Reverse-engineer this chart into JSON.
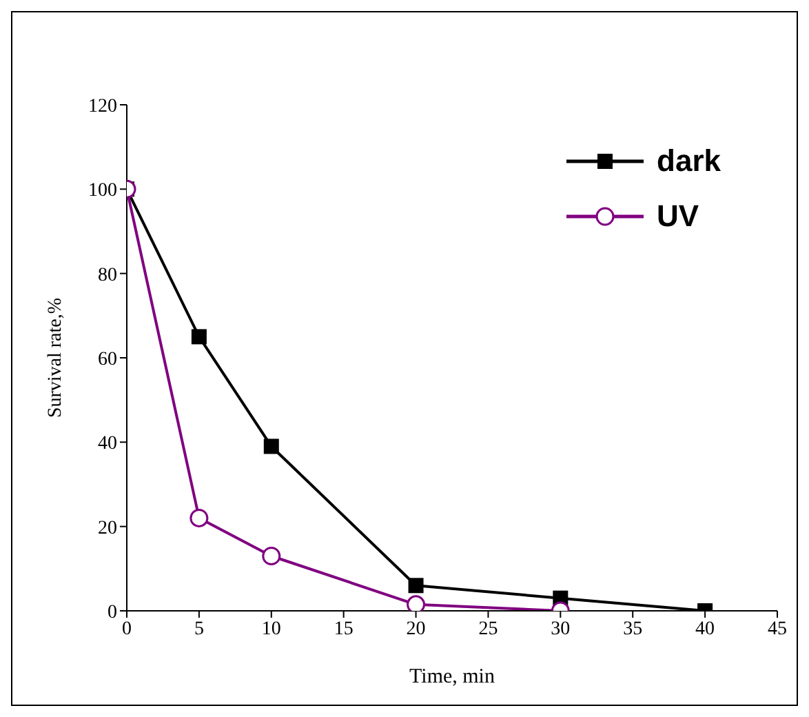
{
  "chart_data": {
    "type": "line",
    "xlabel": "Time, min",
    "ylabel": "Survival rate,%",
    "xlim": [
      0,
      45
    ],
    "xticks": [
      0,
      5,
      10,
      15,
      20,
      25,
      30,
      35,
      40,
      45
    ],
    "ylim": [
      0,
      120
    ],
    "yticks": [
      0,
      20,
      40,
      60,
      80,
      100,
      120
    ],
    "grid": false,
    "legend": "top right",
    "series": [
      {
        "name": "dark",
        "color": "#000000",
        "marker": "square",
        "x": [
          0,
          5,
          10,
          20,
          30,
          40
        ],
        "values": [
          100,
          65,
          39,
          6,
          3,
          0
        ]
      },
      {
        "name": "UV",
        "color": "#800080",
        "marker": "circle",
        "x": [
          0,
          5,
          10,
          20,
          30
        ],
        "values": [
          100,
          22,
          13,
          1.5,
          0
        ]
      }
    ]
  }
}
